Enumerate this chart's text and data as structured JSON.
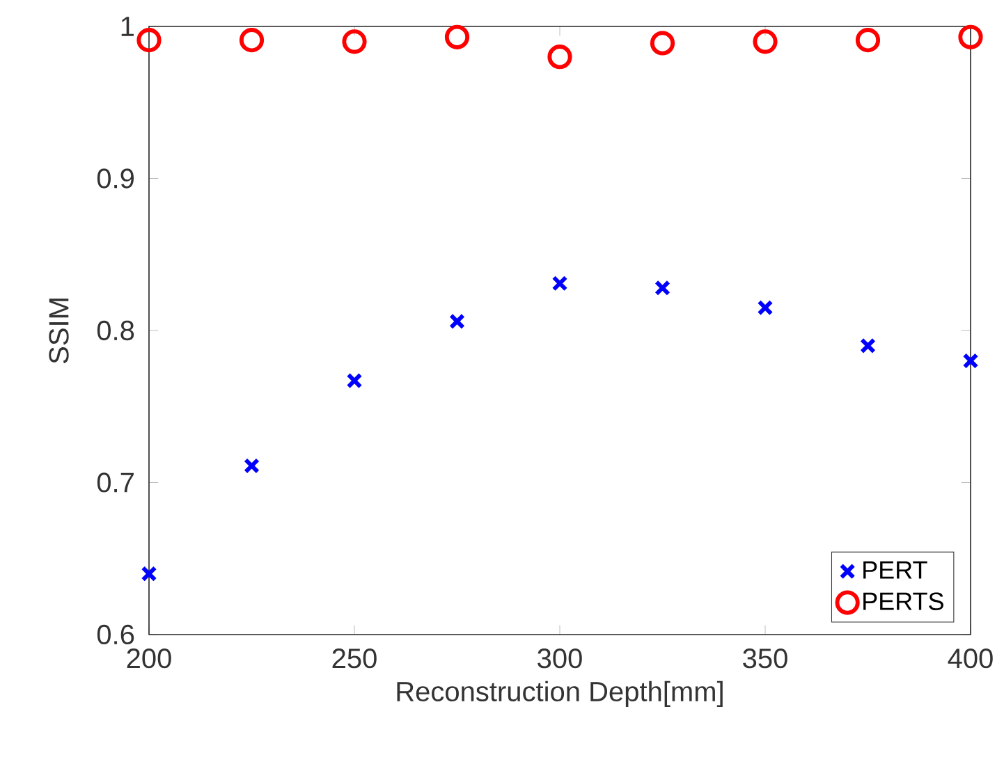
{
  "chart_data": {
    "type": "scatter",
    "xlabel": "Reconstruction Depth[mm]",
    "ylabel": "SSIM",
    "x": [
      200,
      225,
      250,
      275,
      300,
      325,
      350,
      375,
      400
    ],
    "xlim": [
      200,
      400
    ],
    "xticks": [
      200,
      250,
      300,
      350,
      400
    ],
    "ylim": [
      0.6,
      1
    ],
    "yticks": [
      0.6,
      0.7,
      0.8,
      0.9,
      1
    ],
    "legend": "bottom right",
    "grid": false,
    "series": [
      {
        "name": "PERT",
        "color": "#0000ff",
        "marker": "cross",
        "values": [
          0.64,
          0.711,
          0.767,
          0.806,
          0.831,
          0.828,
          0.815,
          0.79,
          0.78
        ]
      },
      {
        "name": "PERTS",
        "color": "#ff0000",
        "marker": "circle",
        "values": [
          0.991,
          0.991,
          0.99,
          0.993,
          0.98,
          0.989,
          0.99,
          0.991,
          0.993
        ]
      }
    ]
  }
}
